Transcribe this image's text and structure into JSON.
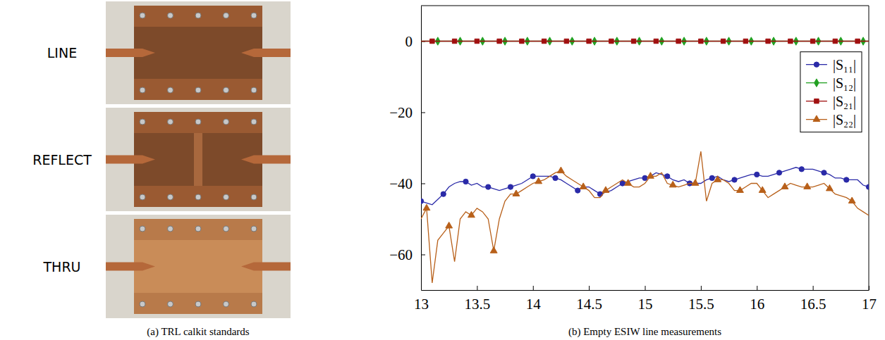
{
  "panel_a": {
    "labels": [
      "LINE",
      "REFLECT",
      "THRU"
    ],
    "caption": "(a) TRL calkit standards"
  },
  "chart_data": {
    "type": "line",
    "caption": "(b) Empty ESIW line measurements",
    "x": [
      13,
      13.05,
      13.1,
      13.15,
      13.2,
      13.25,
      13.3,
      13.35,
      13.4,
      13.45,
      13.5,
      13.55,
      13.6,
      13.65,
      13.7,
      13.75,
      13.8,
      13.85,
      13.9,
      13.95,
      14,
      14.05,
      14.1,
      14.15,
      14.2,
      14.25,
      14.3,
      14.35,
      14.4,
      14.45,
      14.5,
      14.55,
      14.6,
      14.65,
      14.7,
      14.75,
      14.8,
      14.85,
      14.9,
      14.95,
      15,
      15.05,
      15.1,
      15.15,
      15.2,
      15.25,
      15.3,
      15.35,
      15.4,
      15.45,
      15.5,
      15.55,
      15.6,
      15.65,
      15.7,
      15.75,
      15.8,
      15.85,
      15.9,
      15.95,
      16,
      16.05,
      16.1,
      16.15,
      16.2,
      16.25,
      16.3,
      16.35,
      16.4,
      16.45,
      16.5,
      16.55,
      16.6,
      16.65,
      16.7,
      16.75,
      16.8,
      16.85,
      16.9,
      16.95,
      17
    ],
    "series": [
      {
        "name": "|S₁₁|",
        "color": "#2a2aa8",
        "marker": "circle",
        "line_style": "solid",
        "values": [
          -45,
          -45.5,
          -46,
          -44.5,
          -43,
          -41,
          -40,
          -39.5,
          -39.5,
          -40.5,
          -40,
          -41,
          -41,
          -41.5,
          -42,
          -41.5,
          -41,
          -40.5,
          -40,
          -39,
          -38,
          -38,
          -38,
          -38,
          -38.5,
          -39,
          -40,
          -41,
          -42,
          -41,
          -41,
          -42,
          -43,
          -42.5,
          -42,
          -41,
          -40,
          -39.5,
          -39,
          -38.5,
          -38.5,
          -38,
          -37,
          -37.5,
          -38,
          -39,
          -39.5,
          -39,
          -40,
          -40,
          -40,
          -39,
          -38.5,
          -38,
          -39,
          -39.5,
          -39,
          -38.5,
          -38,
          -37.5,
          -37.5,
          -38,
          -38,
          -37.5,
          -37,
          -36.5,
          -36,
          -35.5,
          -36,
          -36,
          -36,
          -36.5,
          -37,
          -37.5,
          -38.5,
          -38.5,
          -39,
          -39,
          -39,
          -40.5,
          -41
        ]
      },
      {
        "name": "|S₁₂|",
        "color": "#22a022",
        "marker": "diamond",
        "line_style": "solid",
        "values": [
          0,
          0,
          0,
          0,
          0,
          0,
          0,
          0,
          0,
          0,
          0,
          0,
          0,
          0,
          0,
          0,
          0,
          0,
          0,
          0,
          0,
          0,
          0,
          0,
          0,
          0,
          0,
          0,
          0,
          0,
          0,
          0,
          0,
          0,
          0,
          0,
          0,
          0,
          0,
          0,
          0,
          0,
          0,
          0,
          0,
          0,
          0,
          0,
          0,
          0,
          0,
          0,
          0,
          0,
          0,
          0,
          0,
          0,
          0,
          0,
          0,
          0,
          0,
          0,
          0,
          0,
          0,
          0,
          0,
          0,
          0,
          0,
          0,
          0,
          0,
          0,
          0,
          0,
          0,
          0,
          0
        ]
      },
      {
        "name": "|S₂₁|",
        "color": "#a01010",
        "marker": "square",
        "line_style": "solid",
        "values": [
          0,
          0,
          0,
          0,
          0,
          0,
          0,
          0,
          0,
          0,
          0,
          0,
          0,
          0,
          0,
          0,
          0,
          0,
          0,
          0,
          0,
          0,
          0,
          0,
          0,
          0,
          0,
          0,
          0,
          0,
          0,
          0,
          0,
          0,
          0,
          0,
          0,
          0,
          0,
          0,
          0,
          0,
          0,
          0,
          0,
          0,
          0,
          0,
          0,
          0,
          0,
          0,
          0,
          0,
          0,
          0,
          0,
          0,
          0,
          0,
          0,
          0,
          0,
          0,
          0,
          0,
          0,
          0,
          0,
          0,
          0,
          0,
          0,
          0,
          0,
          0,
          0,
          0,
          0,
          0,
          0
        ]
      },
      {
        "name": "|S₂₂|",
        "color": "#b8601a",
        "marker": "triangle",
        "line_style": "solid",
        "values": [
          -50,
          -47,
          -68,
          -56,
          -54,
          -52,
          -62,
          -50,
          -48,
          -49,
          -47,
          -48,
          -50,
          -59,
          -50,
          -45,
          -43,
          -43,
          -42,
          -41,
          -40,
          -39.5,
          -39,
          -38,
          -37,
          -36.5,
          -38,
          -39,
          -40,
          -41,
          -42,
          -44,
          -44,
          -42,
          -41,
          -40,
          -39,
          -40,
          -41,
          -41,
          -40,
          -38,
          -38,
          -37,
          -40,
          -40.5,
          -41,
          -40.5,
          -40,
          -40,
          -31,
          -45,
          -40,
          -39,
          -39,
          -40,
          -42,
          -42,
          -41,
          -40,
          -40,
          -42,
          -44,
          -43,
          -42,
          -41,
          -40,
          -40.5,
          -41,
          -41,
          -41,
          -40.5,
          -40,
          -41.5,
          -43,
          -43.5,
          -44,
          -45,
          -47,
          -48,
          -49
        ]
      }
    ],
    "xlim": [
      13,
      17
    ],
    "xticks": [
      13,
      13.5,
      14,
      14.5,
      15,
      15.5,
      16,
      16.5,
      17
    ],
    "ylim": [
      -70,
      10
    ],
    "yticks": [
      {
        "value": -60,
        "label": "−60"
      },
      {
        "value": -40,
        "label": "−40"
      },
      {
        "value": -20,
        "label": "−20"
      },
      0
    ],
    "grid": false,
    "legend": "right"
  }
}
